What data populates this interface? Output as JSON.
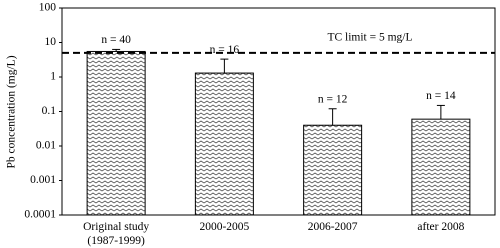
{
  "chart_data": {
    "type": "bar",
    "y_label": "Pb concentration (mg/L)",
    "categories": [
      "Original study\n(1987-1999)",
      "2000-2005",
      "2006-2007",
      "after 2008"
    ],
    "values": [
      5.5,
      1.3,
      0.04,
      0.06
    ],
    "errors": [
      0.8,
      2.0,
      0.08,
      0.09
    ],
    "n_labels": [
      "n = 40",
      "n = 16",
      "n = 12",
      "n = 14"
    ],
    "color": "#000000",
    "log_y": true,
    "ylim": [
      0.0001,
      100
    ],
    "yticks": [
      0.0001,
      0.001,
      0.01,
      0.1,
      1,
      10,
      100
    ],
    "reference_line": {
      "value": 5,
      "label": "TC limit = 5 mg/L"
    }
  }
}
